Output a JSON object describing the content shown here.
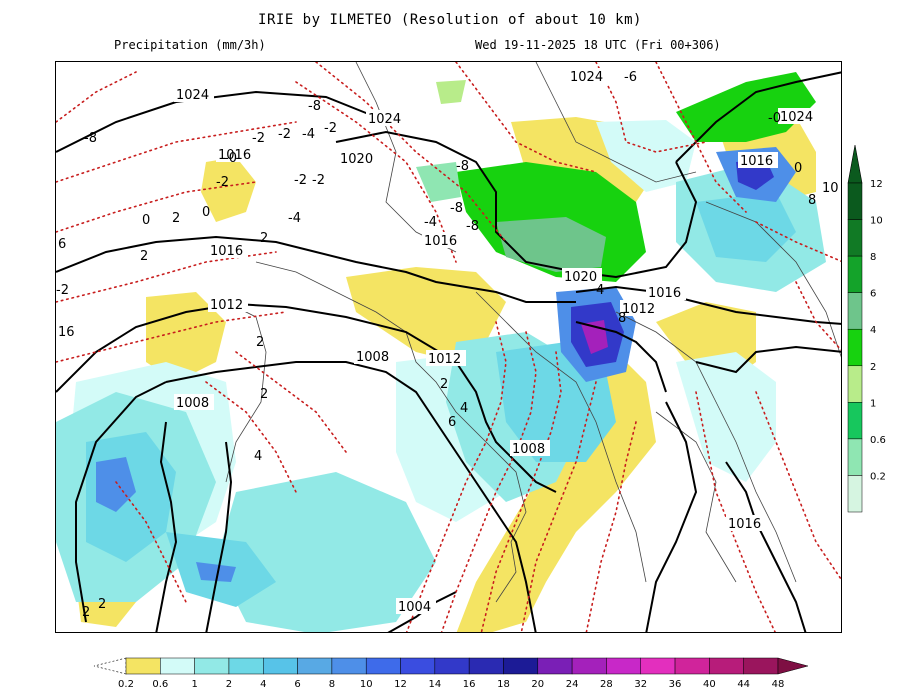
{
  "header": {
    "title": "IRIE by ILMETEO (Resolution of about 10 km)",
    "field": "Precipitation (mm/3h)",
    "valid_time": "Wed 19-11-2025 18 UTC (Fri 00+306)"
  },
  "isobars": [
    {
      "label": "1024",
      "value": 1024
    },
    {
      "label": "1024",
      "value": 1024
    },
    {
      "label": "1024",
      "value": 1024
    },
    {
      "label": "1024",
      "value": 1024
    },
    {
      "label": "1020",
      "value": 1020
    },
    {
      "label": "1020",
      "value": 1020
    },
    {
      "label": "1016",
      "value": 1016
    },
    {
      "label": "1016",
      "value": 1016
    },
    {
      "label": "1016",
      "value": 1016
    },
    {
      "label": "1016",
      "value": 1016
    },
    {
      "label": "1016",
      "value": 1016
    },
    {
      "label": "1016",
      "value": 1016
    },
    {
      "label": "1012",
      "value": 1012
    },
    {
      "label": "1012",
      "value": 1012
    },
    {
      "label": "1012",
      "value": 1012
    },
    {
      "label": "1008",
      "value": 1008
    },
    {
      "label": "1008",
      "value": 1008
    },
    {
      "label": "1008",
      "value": 1008
    },
    {
      "label": "1004",
      "value": 1004
    }
  ],
  "isotherms": [
    "-6",
    "-8",
    "-8",
    "-8",
    "-8",
    "-8",
    "-4",
    "-4",
    "-4",
    "-2",
    "-2",
    "-2",
    "-2",
    "-2",
    "-2",
    "-2",
    "-0",
    "-0",
    "0",
    "0",
    "0",
    "2",
    "2",
    "2",
    "2",
    "2",
    "2",
    "2",
    "2",
    "4",
    "4",
    "4",
    "6",
    "6",
    "8",
    "8",
    "10",
    "16"
  ],
  "legend_right": {
    "title": "",
    "levels": [
      "12",
      "10",
      "8",
      "6",
      "4",
      "2",
      "1",
      "0.6",
      "0.2"
    ],
    "colors": [
      "#0b5a1e",
      "#117a25",
      "#14a32a",
      "#6ec58b",
      "#17d20f",
      "#b8ec8a",
      "#17c75d",
      "#8fe6b2",
      "#d6f5e1"
    ]
  },
  "legend_bottom": {
    "levels": [
      "0.2",
      "0.6",
      "1",
      "2",
      "4",
      "6",
      "8",
      "10",
      "12",
      "14",
      "16",
      "18",
      "20",
      "24",
      "28",
      "32",
      "36",
      "40",
      "44",
      "48"
    ],
    "colors": [
      "#f4e463",
      "#d3fbf8",
      "#92e9e6",
      "#6dd8e6",
      "#57c3e8",
      "#58a9e4",
      "#4e8fe8",
      "#3e6bea",
      "#3a4de0",
      "#3239c9",
      "#2a2ab2",
      "#1c1b96",
      "#7a1fb6",
      "#a421bb",
      "#c828c8",
      "#e32fbe",
      "#d0249b",
      "#b71c7a",
      "#9a155d",
      "#7e0f43"
    ]
  }
}
